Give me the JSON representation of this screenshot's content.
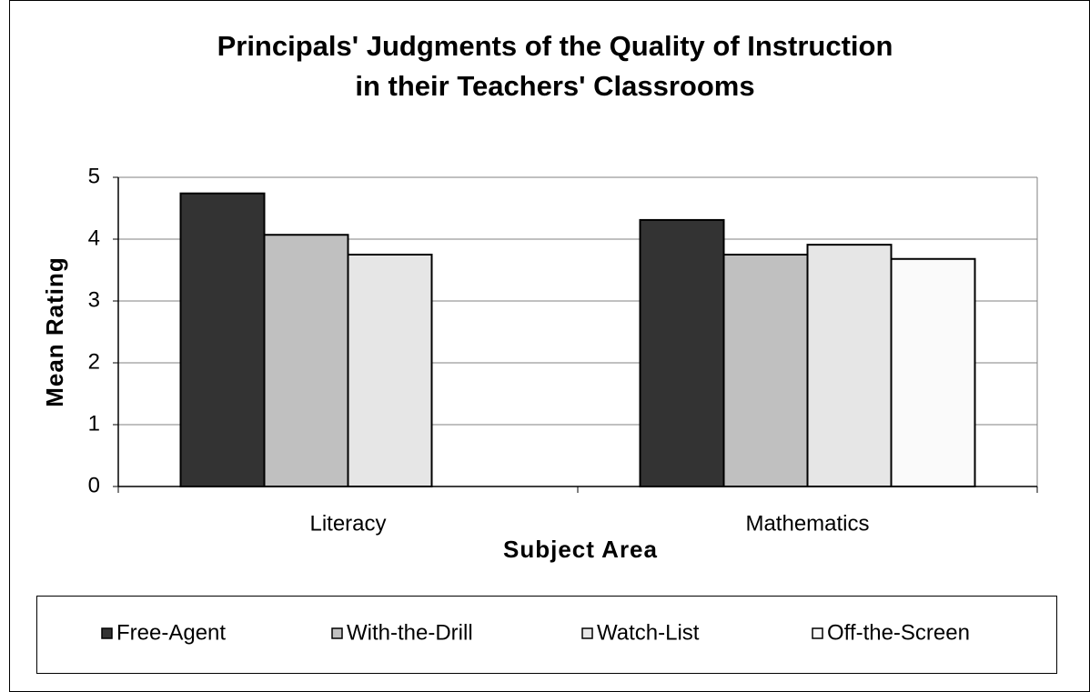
{
  "chart_data": {
    "type": "bar",
    "title": [
      "Principals' Judgments of the Quality of Instruction",
      "in their Teachers' Classrooms"
    ],
    "x_label": "Subject Area",
    "y_label": "Mean Rating",
    "categories": [
      "Literacy",
      "Mathematics"
    ],
    "series": [
      {
        "name": "Free-Agent",
        "color": "#333333",
        "values": [
          4.74,
          4.31
        ]
      },
      {
        "name": "With-the-Drill",
        "color": "#c0c0c0",
        "values": [
          4.07,
          3.75
        ]
      },
      {
        "name": "Watch-List",
        "color": "#e6e6e6",
        "values": [
          3.75,
          3.91
        ]
      },
      {
        "name": "Off-the-Screen",
        "color": "#fafafa",
        "values": [
          null,
          3.68
        ]
      }
    ],
    "ylim": [
      0,
      5
    ],
    "yticks": [
      0,
      1,
      2,
      3,
      4,
      5
    ],
    "grid": true,
    "legend": "bottom"
  }
}
